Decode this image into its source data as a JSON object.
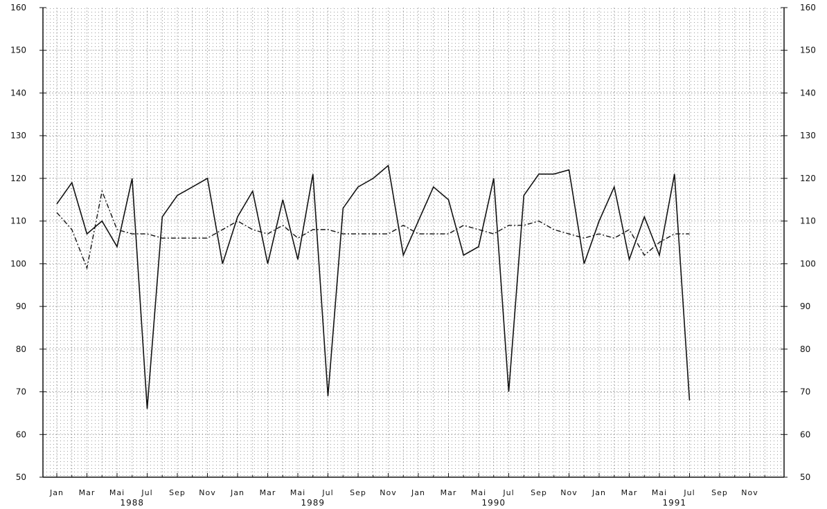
{
  "chart_data": {
    "type": "line",
    "title": "",
    "xlabel": "",
    "ylabel": "",
    "ylim": [
      50,
      160
    ],
    "yticks": [
      50,
      60,
      70,
      80,
      90,
      100,
      110,
      120,
      130,
      140,
      150,
      160
    ],
    "grid": "dotted",
    "legend": "none",
    "x_tick_labels": [
      "Jan",
      "Mar",
      "Mai",
      "Jul",
      "Sep",
      "Nov",
      "Jan",
      "Mar",
      "Mai",
      "Jul",
      "Sep",
      "Nov",
      "Jan",
      "Mar",
      "Mai",
      "Jul",
      "Sep",
      "Nov",
      "Jan",
      "Mar",
      "Mai",
      "Jul",
      "Sep",
      "Nov"
    ],
    "year_labels": [
      {
        "label": "1988",
        "month_index": 5
      },
      {
        "label": "1989",
        "month_index": 17
      },
      {
        "label": "1990",
        "month_index": 29
      },
      {
        "label": "1991",
        "month_index": 41
      }
    ],
    "months_span": 48,
    "series": [
      {
        "style": "solid",
        "color": "#111111",
        "values": [
          114,
          119,
          107,
          110,
          104,
          120,
          66,
          111,
          116,
          118,
          120,
          100,
          111,
          117,
          100,
          115,
          101,
          121,
          69,
          113,
          118,
          120,
          123,
          102,
          110,
          118,
          115,
          102,
          104,
          120,
          70,
          116,
          121,
          121,
          122,
          100,
          110,
          118,
          101,
          111,
          102,
          121,
          68
        ]
      },
      {
        "style": "dash-dot",
        "color": "#111111",
        "values": [
          112,
          108,
          99,
          117,
          108,
          107,
          107,
          106,
          106,
          106,
          106,
          108,
          110,
          108,
          107,
          109,
          106,
          108,
          108,
          107,
          107,
          107,
          107,
          109,
          107,
          107,
          107,
          109,
          108,
          107,
          109,
          109,
          110,
          108,
          107,
          106,
          107,
          106,
          108,
          102,
          105,
          107,
          107
        ]
      }
    ]
  }
}
